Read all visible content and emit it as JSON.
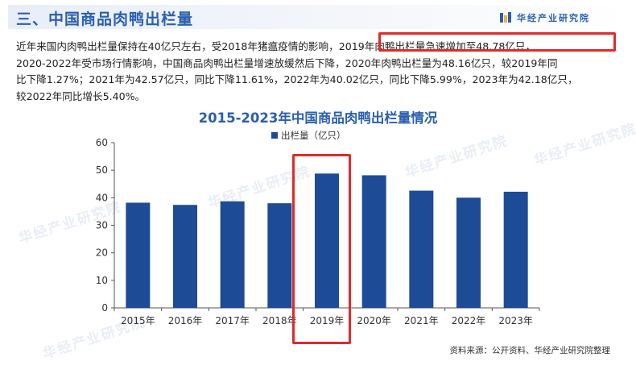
{
  "header": {
    "section_title": "三、中国商品肉鸭出栏量",
    "logo_text": "华经产业研究院",
    "accent_color": "#2b5fae"
  },
  "paragraph": {
    "line1_a": "近年来国内肉鸭出栏量保持在40亿只左右，受2018年猪瘟疫情的影响，",
    "line1_b": "2019年肉鸭出栏量急速增加至48.78亿只，",
    "line2": "2020-2022年受市场行情影响，中国商品肉鸭出栏量增速放缓然后下降，2020年肉鸭出栏量为48.16亿只，较2019年同",
    "line3": "比下降1.27%；2021年为42.57亿只，同比下降11.61%，2022年为40.02亿只，同比下降5.99%，2023年为42.18亿只，",
    "line4": "较2022年同比增长5.40%。"
  },
  "highlight_color": "#e02a2a",
  "watermark": "华经产业研究院",
  "chart_data": {
    "type": "bar",
    "title": "2015-2023年中国商品肉鸭出栏量情况",
    "categories": [
      "2015年",
      "2016年",
      "2017年",
      "2018年",
      "2019年",
      "2020年",
      "2021年",
      "2022年",
      "2023年"
    ],
    "series": [
      {
        "name": "出栏量（亿只）",
        "values": [
          38.2,
          37.4,
          38.7,
          38.0,
          48.78,
          48.16,
          42.57,
          40.02,
          42.18
        ],
        "color": "#1e4b95"
      }
    ],
    "yticks": [
      "0",
      "10",
      "20",
      "30",
      "40",
      "50",
      "60"
    ],
    "ylim": [
      0,
      60
    ],
    "grid": false,
    "legend": "top-center",
    "highlighted_category": "2019年"
  },
  "source": "资料来源：公开资料、华经产业研究院整理"
}
